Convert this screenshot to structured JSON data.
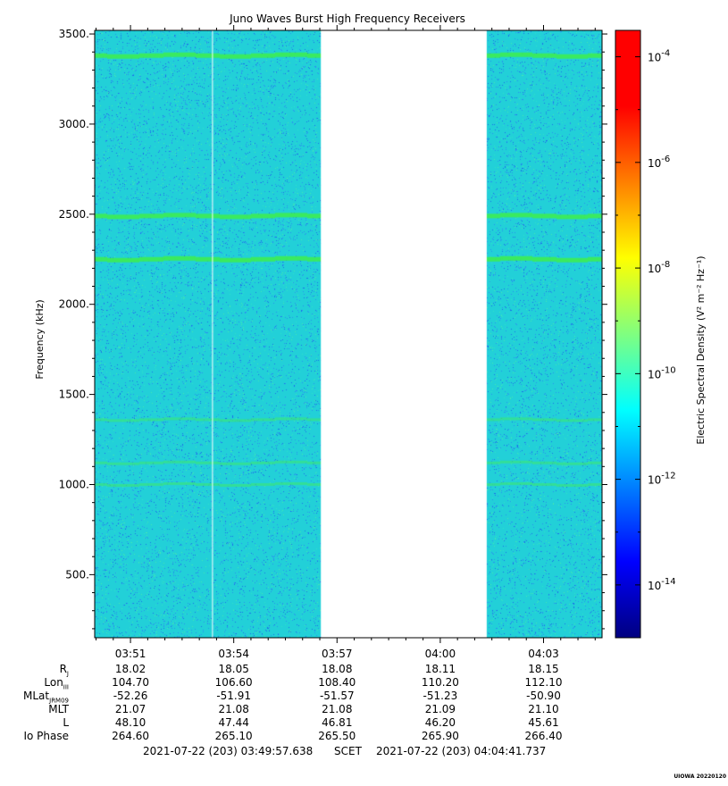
{
  "chart_data": {
    "type": "heatmap",
    "title": "Juno Waves Burst High Frequency Receivers",
    "ylabel": "Frequency (kHz)",
    "ylim": [
      150,
      3520
    ],
    "y_ticks": [
      "500.",
      "1000.",
      "1500.",
      "2000.",
      "2500.",
      "3000.",
      "3500."
    ],
    "y_tick_values": [
      500,
      1000,
      1500,
      2000,
      2500,
      3000,
      3500
    ],
    "x_ticks": [
      "03:51",
      "03:54",
      "03:57",
      "04:00",
      "04:03"
    ],
    "x_tick_minutes": [
      231,
      234,
      237,
      240,
      243
    ],
    "x_range_minutes": [
      229.96,
      244.7
    ],
    "data_gaps": [
      {
        "start_minutes": 236.53,
        "end_minutes": 241.35
      },
      {
        "start_minutes": 233.37,
        "end_minutes": 233.39
      }
    ],
    "background_density_log10": -11.7,
    "emission_lines": [
      {
        "freq_khz": 1000,
        "level_log10": -11.3
      },
      {
        "freq_khz": 1120,
        "level_log10": -11.2
      },
      {
        "freq_khz": 1360,
        "level_log10": -11.55
      },
      {
        "freq_khz": 2250,
        "level_log10": -10.7
      },
      {
        "freq_khz": 2490,
        "level_log10": -10.5
      },
      {
        "freq_khz": 3380,
        "level_log10": -10.7
      }
    ],
    "colorbar": {
      "label": "Electric Spectral Density (V² m⁻² Hz⁻¹)",
      "range_log10": [
        -15,
        -3.5
      ],
      "scale": "log",
      "ticks": [
        {
          "base": "10",
          "exp": "-4",
          "value": -4
        },
        {
          "base": "10",
          "exp": "-6",
          "value": -6
        },
        {
          "base": "10",
          "exp": "-8",
          "value": -8
        },
        {
          "base": "10",
          "exp": "-10",
          "value": -10
        },
        {
          "base": "10",
          "exp": "-12",
          "value": -12
        },
        {
          "base": "10",
          "exp": "-14",
          "value": -14
        }
      ]
    }
  },
  "ephemeris": {
    "rows": [
      {
        "label": "R",
        "sub": "J",
        "values": [
          "18.02",
          "18.05",
          "18.08",
          "18.11",
          "18.15"
        ]
      },
      {
        "label": "Lon",
        "sub": "III",
        "values": [
          "104.70",
          "106.60",
          "108.40",
          "110.20",
          "112.10"
        ]
      },
      {
        "label": "MLat",
        "sub": "JRM09",
        "values": [
          "-52.26",
          "-51.91",
          "-51.57",
          "-51.23",
          "-50.90"
        ]
      },
      {
        "label": "MLT",
        "sub": "",
        "values": [
          "21.07",
          "21.08",
          "21.08",
          "21.09",
          "21.10"
        ]
      },
      {
        "label": "L",
        "sub": "",
        "values": [
          "48.10",
          "47.44",
          "46.81",
          "46.20",
          "45.61"
        ]
      },
      {
        "label": "Io Phase",
        "sub": "",
        "values": [
          "264.60",
          "265.10",
          "265.50",
          "265.90",
          "266.40"
        ]
      }
    ]
  },
  "time_span": {
    "start": "2021-07-22 (203) 03:49:57.638",
    "scet": "SCET",
    "end": "2021-07-22 (203) 04:04:41.737"
  },
  "footer_stamp": "UIOWA 20220120"
}
